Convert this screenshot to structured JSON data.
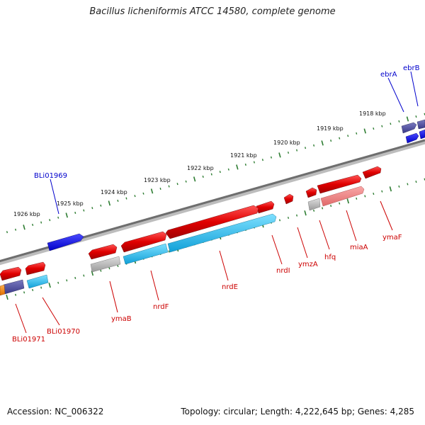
{
  "title": "Bacillus licheniformis ATCC 14580, complete genome",
  "footer": {
    "accession": "Accession: NC_006322",
    "summary": "Topology: circular; Length: 4,222,645 bp; Genes: 4,285"
  },
  "ruler_labels": [
    "1918 kbp",
    "1919 kbp",
    "1920 kbp",
    "1921 kbp",
    "1922 kbp",
    "1923 kbp",
    "1924 kbp",
    "1925 kbp",
    "1926 kbp"
  ],
  "forward_gene_labels": [
    "ebrA",
    "ebrB",
    "BLi01969"
  ],
  "reverse_gene_labels": [
    "ymaF",
    "miaA",
    "hfq",
    "ymzA",
    "nrdI",
    "nrdE",
    "nrdF",
    "ymaB",
    "BLi01970",
    "BLi01971"
  ],
  "colors": {
    "forward_label": "#0000cc",
    "reverse_label": "#cc0000",
    "tick": "#2e7d32",
    "backbone": "#7a7a7a",
    "gene_red": "#e00000",
    "gene_pink": "#f07878",
    "gene_blue": "#1010ee",
    "gene_navy": "#4a4a9a",
    "gene_cyan": "#18b8e8",
    "gene_gray": "#b8b8b8",
    "gene_orange": "#ff8800"
  }
}
